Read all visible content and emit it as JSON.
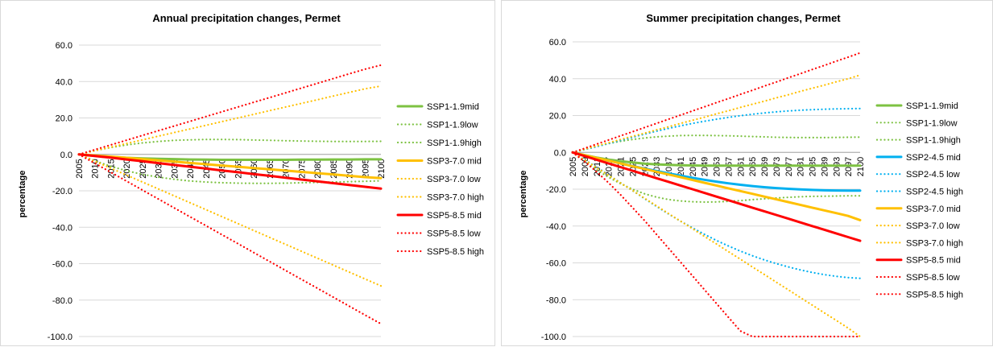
{
  "chart_data": [
    {
      "type": "line",
      "title": "Annual precipitation changes, Permet",
      "xlabel": "",
      "ylabel": "percentage",
      "x": [
        2005,
        2010,
        2015,
        2020,
        2025,
        2030,
        2035,
        2040,
        2045,
        2050,
        2055,
        2060,
        2065,
        2070,
        2075,
        2080,
        2085,
        2090,
        2095,
        2100
      ],
      "ylim": [
        -100,
        60
      ],
      "yticks": [
        60.0,
        40.0,
        20.0,
        0.0,
        -20.0,
        -40.0,
        -60.0,
        -80.0,
        -100.0
      ],
      "ytick_labels": [
        "60.0",
        "40.0",
        "20.0",
        "0.0",
        "-20.0",
        "-40.0",
        "-60.0",
        "-80.0",
        "-100.0"
      ],
      "legend_position": "right",
      "series": [
        {
          "name": "SSP1-1.9mid",
          "color": "#7DC242",
          "style": "solid",
          "values": [
            0,
            -0.8,
            -1.4,
            -1.9,
            -2.2,
            -2.4,
            -2.6,
            -2.8,
            -2.9,
            -3.0,
            -3.0,
            -3.0,
            -3.0,
            -3.0,
            -2.9,
            -2.9,
            -2.8,
            -2.8,
            -2.7,
            -2.7
          ]
        },
        {
          "name": "SSP1-1.9low",
          "color": "#7DC242",
          "style": "dotted",
          "values": [
            0,
            -3.5,
            -6.5,
            -9.0,
            -11.0,
            -12.5,
            -13.7,
            -14.6,
            -15.2,
            -15.6,
            -15.8,
            -15.9,
            -15.9,
            -15.8,
            -15.6,
            -15.4,
            -15.2,
            -15.0,
            -14.8,
            -14.5
          ]
        },
        {
          "name": "SSP1-1.9high",
          "color": "#7DC242",
          "style": "dotted",
          "values": [
            0,
            2.0,
            3.8,
            5.2,
            6.3,
            7.1,
            7.7,
            8.0,
            8.2,
            8.2,
            8.1,
            7.9,
            7.7,
            7.5,
            7.3,
            7.2,
            7.1,
            7.1,
            7.1,
            7.2
          ]
        },
        {
          "name": "SSP3-7.0 mid",
          "color": "#FFC000",
          "style": "solid",
          "values": [
            0,
            -0.6,
            -1.2,
            -1.9,
            -2.6,
            -3.3,
            -4.0,
            -4.7,
            -5.4,
            -6.1,
            -6.8,
            -7.5,
            -8.2,
            -8.9,
            -9.6,
            -10.3,
            -11.0,
            -11.8,
            -12.5,
            -13.0
          ]
        },
        {
          "name": "SSP3-7.0 low",
          "color": "#FFC000",
          "style": "dotted",
          "values": [
            0,
            -3.8,
            -7.6,
            -11.4,
            -15.2,
            -19.0,
            -22.8,
            -26.6,
            -30.4,
            -34.2,
            -38.0,
            -41.8,
            -45.6,
            -49.4,
            -53.2,
            -57.0,
            -60.8,
            -64.6,
            -68.4,
            -72.2
          ]
        },
        {
          "name": "SSP3-7.0 high",
          "color": "#FFC000",
          "style": "dotted",
          "values": [
            0,
            2.0,
            4.0,
            6.0,
            8.0,
            10.0,
            12.0,
            14.0,
            16.0,
            18.0,
            20.0,
            22.0,
            24.0,
            26.0,
            28.0,
            30.0,
            32.0,
            34.0,
            36.0,
            37.5
          ]
        },
        {
          "name": "SSP5-8.5 mid",
          "color": "#FF0000",
          "style": "solid",
          "values": [
            0,
            -0.9,
            -1.8,
            -2.8,
            -3.8,
            -4.8,
            -5.8,
            -6.8,
            -7.8,
            -8.8,
            -9.8,
            -10.8,
            -11.8,
            -12.8,
            -13.8,
            -14.8,
            -15.8,
            -16.8,
            -17.8,
            -18.8
          ]
        },
        {
          "name": "SSP5-8.5 low",
          "color": "#FF0000",
          "style": "dotted",
          "values": [
            0,
            -4.9,
            -9.8,
            -14.7,
            -19.6,
            -24.5,
            -29.4,
            -34.3,
            -39.2,
            -44.1,
            -49.0,
            -53.9,
            -58.8,
            -63.7,
            -68.6,
            -73.5,
            -78.4,
            -83.3,
            -88.2,
            -93.0
          ]
        },
        {
          "name": "SSP5-8.5 high",
          "color": "#FF0000",
          "style": "dotted",
          "values": [
            0,
            2.6,
            5.2,
            7.8,
            10.4,
            13.0,
            15.6,
            18.2,
            20.8,
            23.4,
            26.0,
            28.6,
            31.2,
            33.8,
            36.4,
            39.0,
            41.6,
            44.2,
            46.8,
            49.0
          ]
        }
      ]
    },
    {
      "type": "line",
      "title": "Summer precipitation changes, Permet",
      "xlabel": "",
      "ylabel": "percentage",
      "x": [
        2005,
        2009,
        2013,
        2017,
        2021,
        2025,
        2029,
        2033,
        2037,
        2041,
        2045,
        2049,
        2053,
        2057,
        2061,
        2065,
        2069,
        2073,
        2077,
        2081,
        2085,
        2089,
        2093,
        2097,
        2100
      ],
      "ylim": [
        -100,
        60
      ],
      "yticks": [
        60.0,
        40.0,
        20.0,
        0.0,
        -20.0,
        -40.0,
        -60.0,
        -80.0,
        -100.0
      ],
      "ytick_labels": [
        "60.0",
        "40.0",
        "20.0",
        "0.0",
        "-20.0",
        "-40.0",
        "-60.0",
        "-80.0",
        "-100.0"
      ],
      "legend_position": "right",
      "series": [
        {
          "name": "SSP1-1.9mid",
          "color": "#7DC242",
          "style": "solid",
          "values": [
            0,
            -1.5,
            -2.8,
            -3.9,
            -4.8,
            -5.5,
            -6.1,
            -6.5,
            -6.8,
            -7.0,
            -7.1,
            -7.2,
            -7.2,
            -7.2,
            -7.2,
            -7.2,
            -7.2,
            -7.2,
            -7.2,
            -7.2,
            -7.2,
            -7.2,
            -7.2,
            -7.2,
            -7.2
          ]
        },
        {
          "name": "SSP1-1.9low",
          "color": "#7DC242",
          "style": "dotted",
          "values": [
            0,
            -5.0,
            -9.5,
            -13.5,
            -17.0,
            -20.0,
            -22.5,
            -24.3,
            -25.6,
            -26.4,
            -26.8,
            -27.0,
            -26.9,
            -26.6,
            -26.2,
            -25.7,
            -25.2,
            -24.8,
            -24.4,
            -24.1,
            -23.9,
            -23.8,
            -23.7,
            -23.6,
            -23.6
          ]
        },
        {
          "name": "SSP1-1.9high",
          "color": "#7DC242",
          "style": "dotted",
          "values": [
            0,
            1.8,
            3.4,
            4.8,
            6.0,
            7.0,
            7.8,
            8.4,
            8.8,
            9.1,
            9.2,
            9.2,
            9.1,
            9.0,
            8.8,
            8.6,
            8.4,
            8.2,
            8.1,
            8.0,
            8.0,
            8.0,
            8.1,
            8.2,
            8.3
          ]
        },
        {
          "name": "SSP2-4.5 mid",
          "color": "#00B0F0",
          "style": "solid",
          "values": [
            0,
            -1.5,
            -3.0,
            -4.5,
            -6.0,
            -7.4,
            -8.8,
            -10.1,
            -11.4,
            -12.6,
            -13.8,
            -14.9,
            -15.9,
            -16.8,
            -17.6,
            -18.3,
            -18.9,
            -19.4,
            -19.8,
            -20.1,
            -20.4,
            -20.6,
            -20.7,
            -20.8,
            -20.8
          ]
        },
        {
          "name": "SSP2-4.5 low",
          "color": "#00B0F0",
          "style": "dotted",
          "values": [
            0,
            -4.0,
            -8.0,
            -12.2,
            -16.5,
            -20.8,
            -25.1,
            -29.3,
            -33.4,
            -37.3,
            -41.0,
            -44.5,
            -47.8,
            -50.8,
            -53.6,
            -56.1,
            -58.4,
            -60.4,
            -62.2,
            -63.8,
            -65.2,
            -66.4,
            -67.3,
            -68.0,
            -68.4
          ]
        },
        {
          "name": "SSP2-4.5 high",
          "color": "#00B0F0",
          "style": "dotted",
          "values": [
            0,
            1.5,
            3.1,
            4.8,
            6.5,
            8.2,
            9.9,
            11.5,
            13.0,
            14.4,
            15.7,
            16.9,
            18.0,
            19.0,
            19.9,
            20.7,
            21.4,
            22.0,
            22.5,
            22.9,
            23.2,
            23.4,
            23.6,
            23.7,
            23.8
          ]
        },
        {
          "name": "SSP3-7.0 mid",
          "color": "#FFC000",
          "style": "solid",
          "values": [
            0,
            -1.5,
            -3.0,
            -4.5,
            -6.0,
            -7.5,
            -9.0,
            -10.5,
            -12.0,
            -13.5,
            -15.0,
            -16.5,
            -18.0,
            -19.5,
            -21.0,
            -22.5,
            -24.0,
            -25.5,
            -27.0,
            -28.5,
            -30.0,
            -31.5,
            -33.0,
            -34.5,
            -36.8
          ]
        },
        {
          "name": "SSP3-7.0 low",
          "color": "#FFC000",
          "style": "dotted",
          "values": [
            0,
            -4.1,
            -8.3,
            -12.4,
            -16.6,
            -20.7,
            -24.9,
            -29.0,
            -33.2,
            -37.3,
            -41.4,
            -45.6,
            -49.7,
            -53.9,
            -58.0,
            -62.2,
            -66.3,
            -70.5,
            -74.6,
            -78.8,
            -82.9,
            -87.1,
            -91.2,
            -95.4,
            -100.0
          ]
        },
        {
          "name": "SSP3-7.0 high",
          "color": "#FFC000",
          "style": "dotted",
          "values": [
            0,
            1.7,
            3.5,
            5.2,
            7.0,
            8.7,
            10.4,
            12.2,
            13.9,
            15.7,
            17.4,
            19.1,
            20.9,
            22.6,
            24.4,
            26.1,
            27.8,
            29.6,
            31.3,
            33.1,
            34.8,
            36.5,
            38.3,
            40.0,
            42.0
          ]
        },
        {
          "name": "SSP5-8.5 mid",
          "color": "#FF0000",
          "style": "solid",
          "values": [
            0,
            -2.0,
            -4.0,
            -6.0,
            -8.0,
            -10.0,
            -12.0,
            -14.0,
            -16.0,
            -18.0,
            -20.0,
            -22.0,
            -24.0,
            -26.0,
            -28.0,
            -30.0,
            -32.0,
            -34.0,
            -36.0,
            -38.0,
            -40.0,
            -42.0,
            -44.0,
            -46.0,
            -48.0
          ]
        },
        {
          "name": "SSP5-8.5 low",
          "color": "#FF0000",
          "style": "dotted",
          "values": [
            0,
            -5.0,
            -10.5,
            -16.5,
            -23.0,
            -30.0,
            -37.0,
            -44.5,
            -52.0,
            -59.5,
            -67.0,
            -74.5,
            -82.0,
            -89.5,
            -97.0,
            -100.0,
            -100.0,
            -100.0,
            -100.0,
            -100.0,
            -100.0,
            -100.0,
            -100.0,
            -100.0,
            -100.0
          ]
        },
        {
          "name": "SSP5-8.5 high",
          "color": "#FF0000",
          "style": "dotted",
          "values": [
            0,
            2.2,
            4.5,
            6.7,
            9.0,
            11.2,
            13.5,
            15.7,
            18.0,
            20.2,
            22.5,
            24.7,
            27.0,
            29.2,
            31.5,
            33.7,
            36.0,
            38.2,
            40.5,
            42.7,
            45.0,
            47.2,
            49.5,
            51.7,
            54.0
          ]
        }
      ]
    }
  ]
}
